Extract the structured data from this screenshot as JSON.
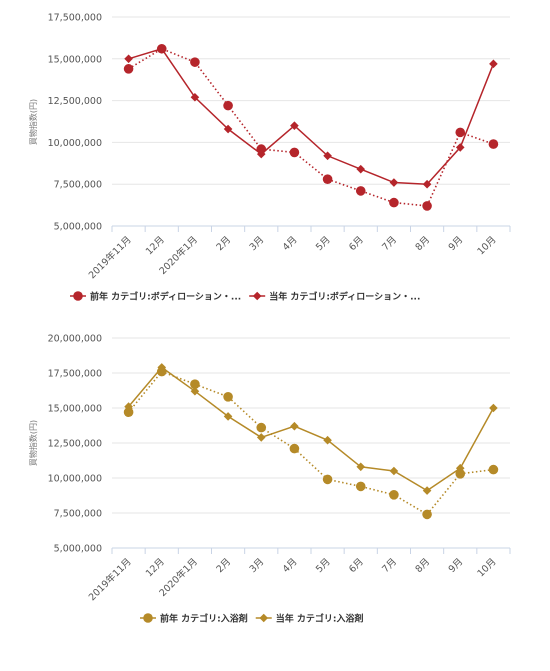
{
  "chart_data": [
    {
      "type": "line",
      "ylabel": "買物指数(円)",
      "ylim": [
        5000000,
        17500000
      ],
      "yticks": [
        "5,000,000",
        "7,500,000",
        "10,000,000",
        "12,500,000",
        "15,000,000",
        "17,500,000"
      ],
      "categories": [
        "2019年11月",
        "12月",
        "2020年1月",
        "2月",
        "3月",
        "4月",
        "5月",
        "6月",
        "7月",
        "8月",
        "9月",
        "10月"
      ],
      "grid": true,
      "legend_position": "bottom",
      "color": "#b5252b",
      "series": [
        {
          "name": "前年 カテゴリ:ボディローション・...",
          "marker": "circle",
          "dash": "dotted",
          "values": [
            14400000,
            15600000,
            14800000,
            12200000,
            9600000,
            9400000,
            7800000,
            7100000,
            6400000,
            6200000,
            10600000,
            9900000
          ]
        },
        {
          "name": "当年 カテゴリ:ボディローション・...",
          "marker": "diamond",
          "dash": "solid",
          "values": [
            15000000,
            15600000,
            12700000,
            10800000,
            9300000,
            11000000,
            9200000,
            8400000,
            7600000,
            7500000,
            9700000,
            14700000
          ]
        }
      ]
    },
    {
      "type": "line",
      "ylabel": "買物指数(円)",
      "ylim": [
        5000000,
        20000000
      ],
      "yticks": [
        "5,000,000",
        "7,500,000",
        "10,000,000",
        "12,500,000",
        "15,000,000",
        "17,500,000",
        "20,000,000"
      ],
      "categories": [
        "2019年11月",
        "12月",
        "2020年1月",
        "2月",
        "3月",
        "4月",
        "5月",
        "6月",
        "7月",
        "8月",
        "9月",
        "10月"
      ],
      "grid": true,
      "legend_position": "bottom",
      "color": "#b58a28",
      "series": [
        {
          "name": "前年 カテゴリ:入浴剤",
          "marker": "circle",
          "dash": "dotted",
          "values": [
            14700000,
            17600000,
            16700000,
            15800000,
            13600000,
            12100000,
            9900000,
            9400000,
            8800000,
            7400000,
            10300000,
            10600000
          ]
        },
        {
          "name": "当年 カテゴリ:入浴剤",
          "marker": "diamond",
          "dash": "solid",
          "values": [
            15100000,
            17900000,
            16200000,
            14400000,
            12900000,
            13700000,
            12700000,
            10800000,
            10500000,
            9100000,
            10700000,
            15000000
          ]
        }
      ]
    }
  ]
}
